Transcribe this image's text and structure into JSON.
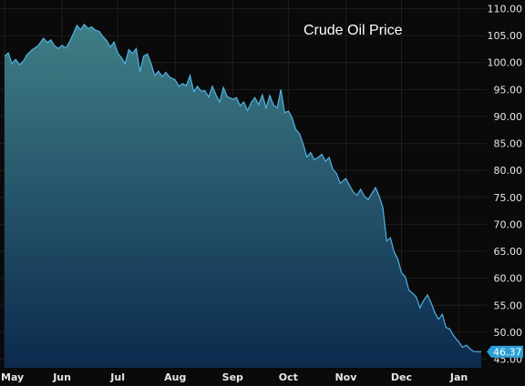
{
  "chart_data": {
    "type": "area",
    "title": "Crude Oil Price",
    "ylim": [
      44,
      110.5
    ],
    "y_ticks": [
      "110.00",
      "105.00",
      "100.00",
      "95.00",
      "90.00",
      "85.00",
      "80.00",
      "75.00",
      "70.00",
      "65.00",
      "60.00",
      "55.00",
      "50.00",
      "45.00"
    ],
    "y_tick_values": [
      110,
      105,
      100,
      95,
      90,
      85,
      80,
      75,
      70,
      65,
      60,
      55,
      50,
      45
    ],
    "x_tick_labels": [
      "May",
      "Jun",
      "Jul",
      "Aug",
      "Sep",
      "Oct",
      "Nov",
      "Dec",
      "Jan"
    ],
    "x_tick_days": [
      0,
      31,
      61,
      92,
      123,
      153,
      184,
      214,
      245
    ],
    "xlim": [
      0,
      257
    ],
    "grid": true,
    "colors": {
      "line": "#4fb3e8",
      "fill_top": "#3f7f86",
      "fill_bottom": "#0c2a4e",
      "grid": "#1e1e1e",
      "last_badge": "#2a9fd6"
    },
    "last_value_label": "46.37",
    "series": [
      {
        "x": [
          0,
          2,
          4,
          6,
          8,
          10,
          12,
          15,
          18,
          21,
          23,
          25,
          27,
          29,
          31,
          33,
          35,
          37,
          39,
          41,
          43,
          45,
          47,
          49,
          51,
          53,
          55,
          57,
          59,
          61,
          63,
          65,
          67,
          69,
          71,
          73,
          75,
          77,
          79,
          81,
          83,
          85,
          87,
          89,
          92,
          94,
          96,
          98,
          100,
          102,
          104,
          106,
          108,
          110,
          112,
          114,
          116,
          118,
          120,
          123,
          125,
          127,
          129,
          131,
          133,
          135,
          137,
          139,
          141,
          143,
          145,
          147,
          149,
          151,
          153,
          155,
          157,
          159,
          161,
          163,
          165,
          167,
          169,
          171,
          173,
          175,
          177,
          179,
          181,
          184,
          186,
          188,
          190,
          192,
          194,
          196,
          198,
          200,
          202,
          204,
          206,
          208,
          210,
          212,
          214,
          216,
          218,
          220,
          222,
          224,
          226,
          228,
          230,
          232,
          234,
          236,
          238,
          240,
          242,
          245,
          247,
          249,
          251,
          253,
          255,
          257
        ],
        "values": [
          101.2,
          101.8,
          99.8,
          100.6,
          99.6,
          100.2,
          101.4,
          102.4,
          103.1,
          104.5,
          103.7,
          104.2,
          103.1,
          102.6,
          103.2,
          102.7,
          103.8,
          105.3,
          106.9,
          106.1,
          107.1,
          106.3,
          106.6,
          106.0,
          105.8,
          104.8,
          104.1,
          102.9,
          103.8,
          101.8,
          100.9,
          99.8,
          102.4,
          101.7,
          102.6,
          98.3,
          101.2,
          101.6,
          99.8,
          97.6,
          98.4,
          97.4,
          98.2,
          97.3,
          96.8,
          95.6,
          96.1,
          95.7,
          97.6,
          94.6,
          95.6,
          94.7,
          94.8,
          93.6,
          95.6,
          94.0,
          92.7,
          95.4,
          93.7,
          93.2,
          93.5,
          92.0,
          92.7,
          91.1,
          92.6,
          93.5,
          92.2,
          94.0,
          91.6,
          93.9,
          92.1,
          91.6,
          95.0,
          90.7,
          91.0,
          89.8,
          87.6,
          86.8,
          84.9,
          82.5,
          83.3,
          82.0,
          82.4,
          83.0,
          81.7,
          82.4,
          80.2,
          79.4,
          77.6,
          78.5,
          77.2,
          76.0,
          75.4,
          76.5,
          75.2,
          74.6,
          75.7,
          76.8,
          75.2,
          73.1,
          66.9,
          67.5,
          64.9,
          63.6,
          61.0,
          60.3,
          57.8,
          57.2,
          56.5,
          54.5,
          55.9,
          56.9,
          55.4,
          53.6,
          52.4,
          53.3,
          50.9,
          50.6,
          49.4,
          48.1,
          47.2,
          47.6,
          46.9,
          46.4,
          46.4,
          46.37
        ]
      }
    ]
  }
}
